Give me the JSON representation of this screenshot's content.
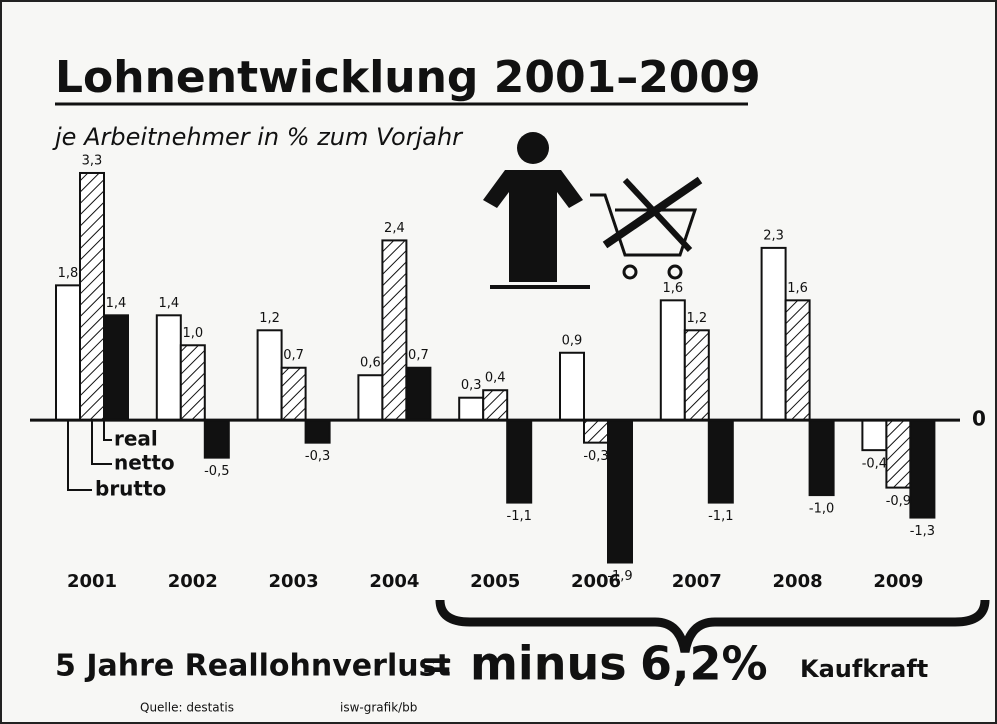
{
  "chart_data": {
    "type": "bar",
    "title": "Lohnentwicklung 2001–2009",
    "subtitle": "je Arbeitnehmer in % zum Vorjahr",
    "categories": [
      "2001",
      "2002",
      "2003",
      "2004",
      "2005",
      "2006",
      "2007",
      "2008",
      "2009"
    ],
    "series": [
      {
        "name": "brutto",
        "color": "#ffffff",
        "values": [
          1.8,
          1.4,
          1.2,
          0.6,
          0.3,
          0.9,
          1.6,
          2.3,
          -0.4
        ],
        "value_labels": [
          "1,8",
          "1,4",
          "1,2",
          "0,6",
          "0,3",
          "0,9",
          "1,6",
          "2,3",
          "-0,4"
        ]
      },
      {
        "name": "netto",
        "color": "hatched",
        "values": [
          3.3,
          1.0,
          0.7,
          2.4,
          0.4,
          -0.3,
          1.2,
          1.6,
          -0.9
        ],
        "value_labels": [
          "3,3",
          "1,0",
          "0,7",
          "2,4",
          "0,4",
          "-0,3",
          "1,2",
          "1,6",
          "-0,9"
        ]
      },
      {
        "name": "real",
        "color": "#111111",
        "values": [
          1.4,
          -0.5,
          -0.3,
          0.7,
          -1.1,
          -1.9,
          -1.1,
          -1.0,
          -1.3
        ],
        "value_labels": [
          "1,4",
          "-0,5",
          "-0,3",
          "0,7",
          "-1,1",
          "-1,9",
          "-1,1",
          "-1,0",
          "-1,3"
        ]
      }
    ],
    "ylim": [
      -2,
      3.5
    ],
    "yticks": [
      0
    ],
    "annotations": [
      "5 Jahre Reallohnverlust",
      "=",
      "minus",
      "6,2%",
      "Kaufkraft"
    ],
    "source": "Quelle: destatis",
    "credit": "isw-grafik/bb"
  }
}
